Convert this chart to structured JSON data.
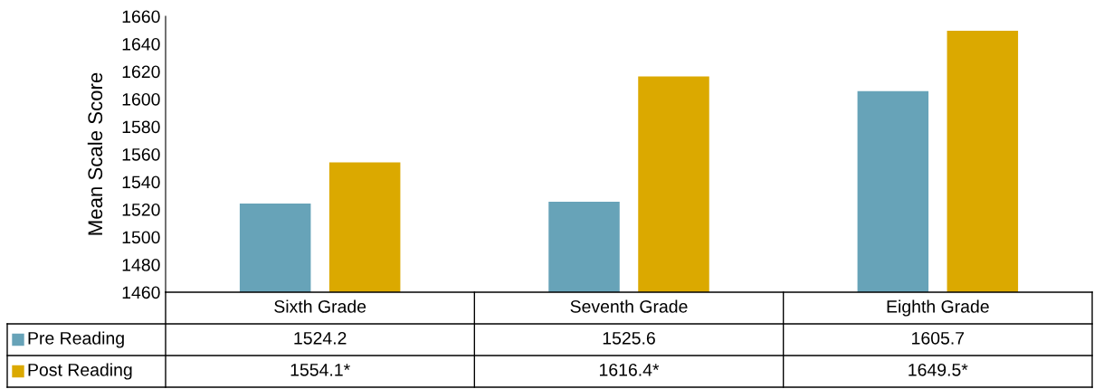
{
  "chart_data": {
    "type": "bar",
    "ylabel": "Mean Scale Score",
    "categories": [
      "Sixth Grade",
      "Seventh Grade",
      "Eighth Grade"
    ],
    "series": [
      {
        "name": "Pre Reading",
        "color": "#67a3b8",
        "values": [
          1524.2,
          1525.6,
          1605.7
        ],
        "value_labels": [
          "1524.2",
          "1525.6",
          "1605.7"
        ]
      },
      {
        "name": "Post Reading",
        "color": "#dba900",
        "values": [
          1554.1,
          1616.4,
          1649.5
        ],
        "value_labels": [
          "1554.1*",
          "1616.4*",
          "1649.5*"
        ]
      }
    ],
    "ylim": [
      1460,
      1660
    ],
    "yticks": [
      1460,
      1480,
      1500,
      1520,
      1540,
      1560,
      1580,
      1600,
      1620,
      1640,
      1660
    ],
    "grid": false,
    "legend": "bottom left"
  }
}
